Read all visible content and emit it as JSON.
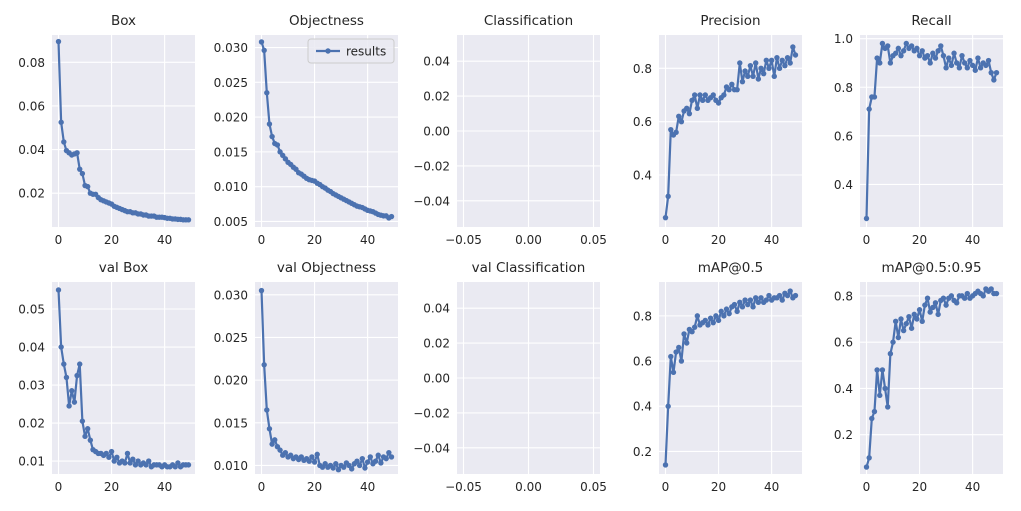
{
  "colors": {
    "series": "#4c72b0",
    "plot_bg": "#eaeaf2",
    "grid": "#ffffff",
    "text": "#262626"
  },
  "legend": {
    "label": "results",
    "placement": "upper-right",
    "panel": 1
  },
  "chart_data": [
    {
      "type": "line",
      "title": "Box",
      "xlim": [
        -2.45,
        51.45
      ],
      "ylim": [
        0.0045,
        0.0925
      ],
      "xticks": [
        0,
        20,
        40
      ],
      "xtick_labels": [
        "0",
        "20",
        "40"
      ],
      "yticks": [
        0.02,
        0.04,
        0.06,
        0.08
      ],
      "ytick_labels": [
        "0.02",
        "0.04",
        "0.06",
        "0.08"
      ],
      "x": [
        0,
        1,
        2,
        3,
        4,
        5,
        6,
        7,
        8,
        9,
        10,
        11,
        12,
        13,
        14,
        15,
        16,
        17,
        18,
        19,
        20,
        21,
        22,
        23,
        24,
        25,
        26,
        27,
        28,
        29,
        30,
        31,
        32,
        33,
        34,
        35,
        36,
        37,
        38,
        39,
        40,
        41,
        42,
        43,
        44,
        45,
        46,
        47,
        48,
        49
      ],
      "series": [
        {
          "name": "results",
          "values": [
            0.0895,
            0.0525,
            0.0435,
            0.0395,
            0.0385,
            0.0375,
            0.038,
            0.0385,
            0.031,
            0.029,
            0.0235,
            0.023,
            0.02,
            0.0195,
            0.0195,
            0.018,
            0.017,
            0.0165,
            0.016,
            0.0155,
            0.015,
            0.014,
            0.0135,
            0.013,
            0.0125,
            0.012,
            0.0115,
            0.0115,
            0.011,
            0.011,
            0.0105,
            0.0105,
            0.01,
            0.01,
            0.0095,
            0.0095,
            0.0095,
            0.009,
            0.009,
            0.009,
            0.0088,
            0.0085,
            0.0085,
            0.0082,
            0.0082,
            0.008,
            0.008,
            0.0078,
            0.0078,
            0.0078
          ]
        }
      ]
    },
    {
      "type": "line",
      "title": "Objectness",
      "xlim": [
        -2.45,
        51.45
      ],
      "ylim": [
        0.0042,
        0.0318
      ],
      "xticks": [
        0,
        20,
        40
      ],
      "xtick_labels": [
        "0",
        "20",
        "40"
      ],
      "yticks": [
        0.005,
        0.01,
        0.015,
        0.02,
        0.025,
        0.03
      ],
      "ytick_labels": [
        "0.005",
        "0.010",
        "0.015",
        "0.020",
        "0.025",
        "0.030"
      ],
      "x": [
        0,
        1,
        2,
        3,
        4,
        5,
        6,
        7,
        8,
        9,
        10,
        11,
        12,
        13,
        14,
        15,
        16,
        17,
        18,
        19,
        20,
        21,
        22,
        23,
        24,
        25,
        26,
        27,
        28,
        29,
        30,
        31,
        32,
        33,
        34,
        35,
        36,
        37,
        38,
        39,
        40,
        41,
        42,
        43,
        44,
        45,
        46,
        47,
        48,
        49
      ],
      "series": [
        {
          "name": "results",
          "values": [
            0.0308,
            0.0296,
            0.0235,
            0.019,
            0.0172,
            0.0162,
            0.016,
            0.015,
            0.0145,
            0.014,
            0.0135,
            0.0132,
            0.0128,
            0.0125,
            0.012,
            0.0118,
            0.0115,
            0.0112,
            0.011,
            0.0109,
            0.0108,
            0.0105,
            0.0103,
            0.01,
            0.0098,
            0.0095,
            0.0093,
            0.009,
            0.0088,
            0.0086,
            0.0084,
            0.0082,
            0.008,
            0.0078,
            0.0076,
            0.0074,
            0.0072,
            0.0071,
            0.007,
            0.0068,
            0.0066,
            0.0065,
            0.0064,
            0.0062,
            0.006,
            0.0059,
            0.0058,
            0.0058,
            0.0055,
            0.0057
          ]
        }
      ]
    },
    {
      "type": "line",
      "title": "Classification",
      "xlim": [
        -0.055,
        0.055
      ],
      "ylim": [
        -0.055,
        0.055
      ],
      "xticks": [
        -0.05,
        0.0,
        0.05
      ],
      "xtick_labels": [
        "−0.05",
        "0.00",
        "0.05"
      ],
      "yticks": [
        -0.04,
        -0.02,
        0.0,
        0.02,
        0.04
      ],
      "ytick_labels": [
        "−0.04",
        "−0.02",
        "0.00",
        "0.02",
        "0.04"
      ],
      "x": [],
      "series": [
        {
          "name": "results",
          "values": []
        }
      ]
    },
    {
      "type": "line",
      "title": "Precision",
      "xlim": [
        -2.45,
        51.45
      ],
      "ylim": [
        0.205,
        0.925
      ],
      "xticks": [
        0,
        20,
        40
      ],
      "xtick_labels": [
        "0",
        "20",
        "40"
      ],
      "yticks": [
        0.4,
        0.6,
        0.8
      ],
      "ytick_labels": [
        "0.4",
        "0.6",
        "0.8"
      ],
      "x": [
        0,
        1,
        2,
        3,
        4,
        5,
        6,
        7,
        8,
        9,
        10,
        11,
        12,
        13,
        14,
        15,
        16,
        17,
        18,
        19,
        20,
        21,
        22,
        23,
        24,
        25,
        26,
        27,
        28,
        29,
        30,
        31,
        32,
        33,
        34,
        35,
        36,
        37,
        38,
        39,
        40,
        41,
        42,
        43,
        44,
        45,
        46,
        47,
        48,
        49
      ],
      "series": [
        {
          "name": "results",
          "values": [
            0.24,
            0.32,
            0.57,
            0.55,
            0.56,
            0.62,
            0.6,
            0.64,
            0.65,
            0.63,
            0.68,
            0.7,
            0.65,
            0.7,
            0.68,
            0.7,
            0.68,
            0.69,
            0.7,
            0.68,
            0.67,
            0.69,
            0.7,
            0.73,
            0.72,
            0.74,
            0.72,
            0.72,
            0.82,
            0.75,
            0.79,
            0.77,
            0.81,
            0.77,
            0.82,
            0.76,
            0.8,
            0.78,
            0.83,
            0.8,
            0.83,
            0.77,
            0.84,
            0.8,
            0.83,
            0.81,
            0.84,
            0.82,
            0.88,
            0.85
          ]
        }
      ]
    },
    {
      "type": "line",
      "title": "Recall",
      "xlim": [
        -2.45,
        51.45
      ],
      "ylim": [
        0.225,
        1.015
      ],
      "xticks": [
        0,
        20,
        40
      ],
      "xtick_labels": [
        "0",
        "20",
        "40"
      ],
      "yticks": [
        0.4,
        0.6,
        0.8,
        1.0
      ],
      "ytick_labels": [
        "0.4",
        "0.6",
        "0.8",
        "1.0"
      ],
      "x": [
        0,
        1,
        2,
        3,
        4,
        5,
        6,
        7,
        8,
        9,
        10,
        11,
        12,
        13,
        14,
        15,
        16,
        17,
        18,
        19,
        20,
        21,
        22,
        23,
        24,
        25,
        26,
        27,
        28,
        29,
        30,
        31,
        32,
        33,
        34,
        35,
        36,
        37,
        38,
        39,
        40,
        41,
        42,
        43,
        44,
        45,
        46,
        47,
        48,
        49
      ],
      "series": [
        {
          "name": "results",
          "values": [
            0.26,
            0.71,
            0.76,
            0.76,
            0.92,
            0.9,
            0.98,
            0.96,
            0.97,
            0.9,
            0.93,
            0.94,
            0.96,
            0.93,
            0.95,
            0.98,
            0.96,
            0.97,
            0.95,
            0.96,
            0.93,
            0.95,
            0.92,
            0.93,
            0.9,
            0.94,
            0.92,
            0.95,
            0.97,
            0.93,
            0.88,
            0.92,
            0.89,
            0.94,
            0.9,
            0.88,
            0.93,
            0.9,
            0.88,
            0.91,
            0.89,
            0.87,
            0.92,
            0.88,
            0.9,
            0.89,
            0.91,
            0.86,
            0.83,
            0.86
          ]
        }
      ]
    },
    {
      "type": "line",
      "title": "val Box",
      "xlim": [
        -2.45,
        51.45
      ],
      "ylim": [
        0.0066,
        0.0571
      ],
      "xticks": [
        0,
        20,
        40
      ],
      "xtick_labels": [
        "0",
        "20",
        "40"
      ],
      "yticks": [
        0.01,
        0.02,
        0.03,
        0.04,
        0.05
      ],
      "ytick_labels": [
        "0.01",
        "0.02",
        "0.03",
        "0.04",
        "0.05"
      ],
      "x": [
        0,
        1,
        2,
        3,
        4,
        5,
        6,
        7,
        8,
        9,
        10,
        11,
        12,
        13,
        14,
        15,
        16,
        17,
        18,
        19,
        20,
        21,
        22,
        23,
        24,
        25,
        26,
        27,
        28,
        29,
        30,
        31,
        32,
        33,
        34,
        35,
        36,
        37,
        38,
        39,
        40,
        41,
        42,
        43,
        44,
        45,
        46,
        47,
        48,
        49
      ],
      "series": [
        {
          "name": "results",
          "values": [
            0.055,
            0.04,
            0.0355,
            0.032,
            0.0245,
            0.0285,
            0.0255,
            0.0325,
            0.0355,
            0.0205,
            0.0165,
            0.0185,
            0.0155,
            0.013,
            0.0125,
            0.012,
            0.012,
            0.0115,
            0.012,
            0.011,
            0.0125,
            0.01,
            0.011,
            0.0095,
            0.01,
            0.0095,
            0.012,
            0.0095,
            0.0105,
            0.009,
            0.01,
            0.009,
            0.0095,
            0.009,
            0.01,
            0.0085,
            0.009,
            0.009,
            0.009,
            0.0085,
            0.009,
            0.0085,
            0.0085,
            0.009,
            0.0085,
            0.0095,
            0.0085,
            0.009,
            0.009,
            0.009
          ]
        }
      ]
    },
    {
      "type": "line",
      "title": "val Objectness",
      "xlim": [
        -2.45,
        51.45
      ],
      "ylim": [
        0.009,
        0.0315
      ],
      "xticks": [
        0,
        20,
        40
      ],
      "xtick_labels": [
        "0",
        "20",
        "40"
      ],
      "yticks": [
        0.01,
        0.015,
        0.02,
        0.025,
        0.03
      ],
      "ytick_labels": [
        "0.010",
        "0.015",
        "0.020",
        "0.025",
        "0.030"
      ],
      "x": [
        0,
        1,
        2,
        3,
        4,
        5,
        6,
        7,
        8,
        9,
        10,
        11,
        12,
        13,
        14,
        15,
        16,
        17,
        18,
        19,
        20,
        21,
        22,
        23,
        24,
        25,
        26,
        27,
        28,
        29,
        30,
        31,
        32,
        33,
        34,
        35,
        36,
        37,
        38,
        39,
        40,
        41,
        42,
        43,
        44,
        45,
        46,
        47,
        48,
        49
      ],
      "series": [
        {
          "name": "results",
          "values": [
            0.0305,
            0.0218,
            0.0165,
            0.0143,
            0.0125,
            0.013,
            0.0122,
            0.0118,
            0.0112,
            0.0115,
            0.011,
            0.0112,
            0.0108,
            0.011,
            0.0107,
            0.011,
            0.0106,
            0.0108,
            0.0105,
            0.011,
            0.0104,
            0.0113,
            0.01,
            0.0098,
            0.0102,
            0.0098,
            0.01,
            0.0097,
            0.0102,
            0.0095,
            0.01,
            0.0098,
            0.0103,
            0.01,
            0.0096,
            0.0102,
            0.0105,
            0.01,
            0.0108,
            0.0097,
            0.0104,
            0.011,
            0.0102,
            0.0105,
            0.0112,
            0.0103,
            0.011,
            0.0108,
            0.0115,
            0.011
          ]
        }
      ]
    },
    {
      "type": "line",
      "title": "val Classification",
      "xlim": [
        -0.055,
        0.055
      ],
      "ylim": [
        -0.055,
        0.055
      ],
      "xticks": [
        -0.05,
        0.0,
        0.05
      ],
      "xtick_labels": [
        "−0.05",
        "0.00",
        "0.05"
      ],
      "yticks": [
        -0.04,
        -0.02,
        0.0,
        0.02,
        0.04
      ],
      "ytick_labels": [
        "−0.04",
        "−0.02",
        "0.00",
        "0.02",
        "0.04"
      ],
      "x": [],
      "series": [
        {
          "name": "results",
          "values": []
        }
      ]
    },
    {
      "type": "line",
      "title": "mAP@0.5",
      "xlim": [
        -2.45,
        51.45
      ],
      "ylim": [
        0.1,
        0.95
      ],
      "xticks": [
        0,
        20,
        40
      ],
      "xtick_labels": [
        "0",
        "20",
        "40"
      ],
      "yticks": [
        0.2,
        0.4,
        0.6,
        0.8
      ],
      "ytick_labels": [
        "0.2",
        "0.4",
        "0.6",
        "0.8"
      ],
      "x": [
        0,
        1,
        2,
        3,
        4,
        5,
        6,
        7,
        8,
        9,
        10,
        11,
        12,
        13,
        14,
        15,
        16,
        17,
        18,
        19,
        20,
        21,
        22,
        23,
        24,
        25,
        26,
        27,
        28,
        29,
        30,
        31,
        32,
        33,
        34,
        35,
        36,
        37,
        38,
        39,
        40,
        41,
        42,
        43,
        44,
        45,
        46,
        47,
        48,
        49
      ],
      "series": [
        {
          "name": "results",
          "values": [
            0.14,
            0.4,
            0.62,
            0.55,
            0.64,
            0.66,
            0.6,
            0.72,
            0.68,
            0.74,
            0.73,
            0.75,
            0.8,
            0.76,
            0.77,
            0.78,
            0.76,
            0.79,
            0.77,
            0.8,
            0.78,
            0.82,
            0.8,
            0.83,
            0.81,
            0.84,
            0.85,
            0.82,
            0.86,
            0.84,
            0.87,
            0.85,
            0.87,
            0.84,
            0.88,
            0.86,
            0.88,
            0.86,
            0.87,
            0.89,
            0.87,
            0.88,
            0.88,
            0.89,
            0.87,
            0.9,
            0.89,
            0.91,
            0.88,
            0.89
          ]
        }
      ]
    },
    {
      "type": "line",
      "title": "mAP@0.5:0.95",
      "xlim": [
        -2.45,
        51.45
      ],
      "ylim": [
        0.03,
        0.86
      ],
      "xticks": [
        0,
        20,
        40
      ],
      "xtick_labels": [
        "0",
        "20",
        "40"
      ],
      "yticks": [
        0.2,
        0.4,
        0.6,
        0.8
      ],
      "ytick_labels": [
        "0.2",
        "0.4",
        "0.6",
        "0.8"
      ],
      "x": [
        0,
        1,
        2,
        3,
        4,
        5,
        6,
        7,
        8,
        9,
        10,
        11,
        12,
        13,
        14,
        15,
        16,
        17,
        18,
        19,
        20,
        21,
        22,
        23,
        24,
        25,
        26,
        27,
        28,
        29,
        30,
        31,
        32,
        33,
        34,
        35,
        36,
        37,
        38,
        39,
        40,
        41,
        42,
        43,
        44,
        45,
        46,
        47,
        48,
        49
      ],
      "series": [
        {
          "name": "results",
          "values": [
            0.06,
            0.1,
            0.27,
            0.3,
            0.48,
            0.37,
            0.48,
            0.4,
            0.32,
            0.55,
            0.6,
            0.69,
            0.62,
            0.7,
            0.65,
            0.68,
            0.71,
            0.66,
            0.72,
            0.7,
            0.74,
            0.69,
            0.76,
            0.79,
            0.73,
            0.75,
            0.77,
            0.72,
            0.78,
            0.79,
            0.76,
            0.79,
            0.8,
            0.78,
            0.77,
            0.8,
            0.8,
            0.79,
            0.81,
            0.79,
            0.8,
            0.81,
            0.82,
            0.81,
            0.8,
            0.83,
            0.82,
            0.83,
            0.81,
            0.81
          ]
        }
      ]
    }
  ]
}
